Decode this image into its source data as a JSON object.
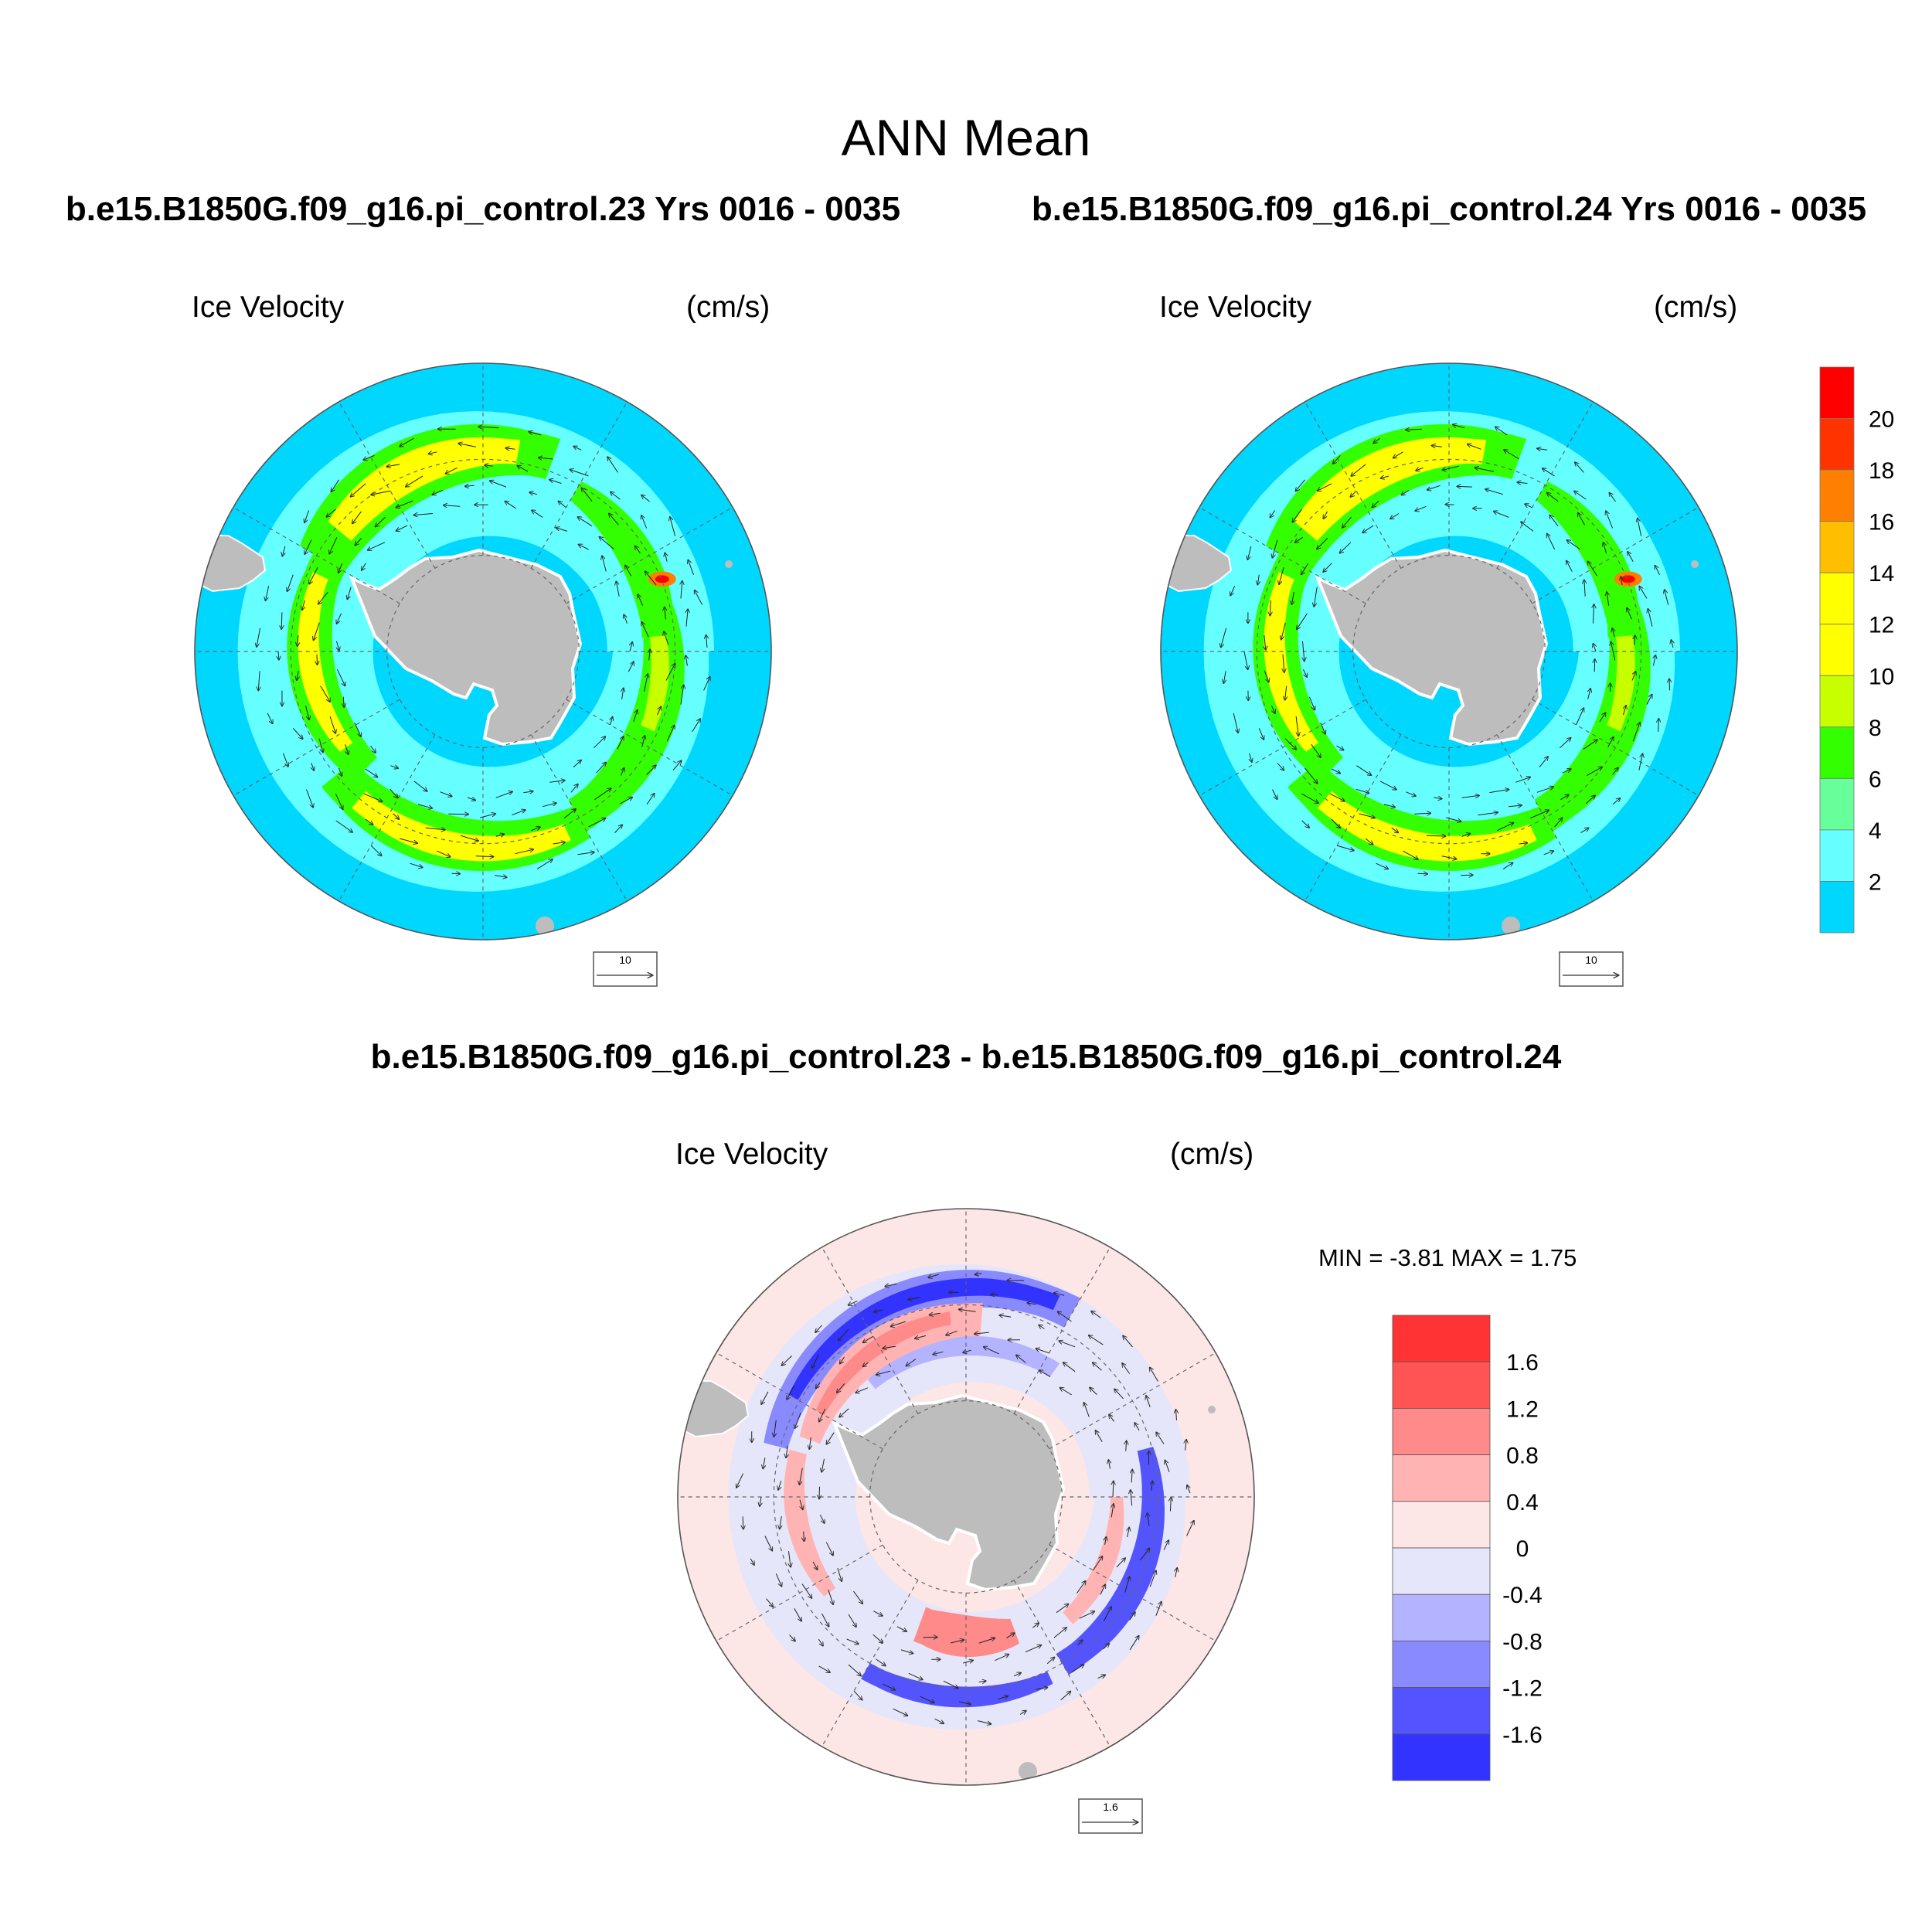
{
  "title": "ANN Mean",
  "panels": [
    {
      "run_title": "b.e15.B1850G.f09_g16.pi_control.23  Yrs 0016 - 0035",
      "variable": "Ice Velocity",
      "units": "(cm/s)",
      "ref_vector": "10"
    },
    {
      "run_title": "b.e15.B1850G.f09_g16.pi_control.24  Yrs 0016 - 0035",
      "variable": "Ice Velocity",
      "units": "(cm/s)",
      "ref_vector": "10"
    }
  ],
  "difference": {
    "title": "b.e15.B1850G.f09_g16.pi_control.23 - b.e15.B1850G.f09_g16.pi_control.24",
    "variable": "Ice Velocity",
    "units": "(cm/s)",
    "min_label": "MIN =",
    "min_value": "-3.81",
    "max_label": "MAX =",
    "max_value": "1.75",
    "ref_vector": "1.6"
  },
  "colorbar_velocity": {
    "labels": [
      "20",
      "18",
      "16",
      "14",
      "12",
      "10",
      "8",
      "6",
      "4",
      "2"
    ],
    "colors": [
      "#ff0000",
      "#ff3300",
      "#ff7f00",
      "#ffbf00",
      "#ffff00",
      "#ffff00",
      "#c8ff00",
      "#33ff00",
      "#66ff99",
      "#66ffff",
      "#00d7ff"
    ]
  },
  "colorbar_difference": {
    "labels": [
      "1.6",
      "1.2",
      "0.8",
      "0.4",
      "0",
      "-0.4",
      "-0.8",
      "-1.2",
      "-1.6"
    ],
    "colors": [
      "#ff3333",
      "#ff5454",
      "#ff8a8a",
      "#ffb3b3",
      "#fde6e6",
      "#e6e6fa",
      "#b3b3ff",
      "#8a8aff",
      "#5454ff",
      "#3333ff"
    ]
  },
  "colors": {
    "ocean_base": "#00d7ff",
    "land": "#bdbdbd",
    "diff_base": "#fde6e6"
  }
}
